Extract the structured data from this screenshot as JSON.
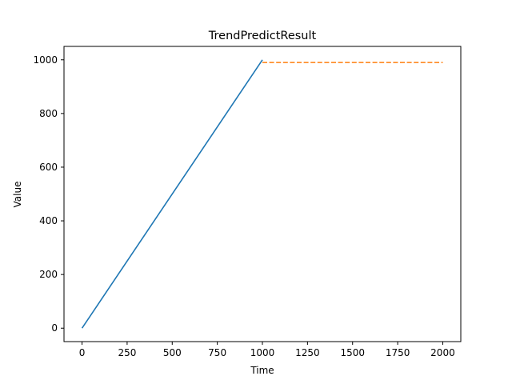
{
  "chart_data": {
    "type": "line",
    "title": "TrendPredictResult",
    "xlabel": "Time",
    "ylabel": "Value",
    "xlim": [
      -100,
      2100
    ],
    "ylim": [
      -50,
      1050
    ],
    "xticks": [
      0,
      250,
      500,
      750,
      1000,
      1250,
      1500,
      1750,
      2000
    ],
    "yticks": [
      0,
      200,
      400,
      600,
      800,
      1000
    ],
    "grid": false,
    "series": [
      {
        "style": "solid",
        "color": "#1f77b4",
        "x": [
          0,
          1000
        ],
        "y": [
          0,
          1000
        ]
      },
      {
        "style": "dashed",
        "color": "#ff7f0e",
        "x": [
          1000,
          2000
        ],
        "y": [
          990,
          990
        ]
      }
    ]
  }
}
